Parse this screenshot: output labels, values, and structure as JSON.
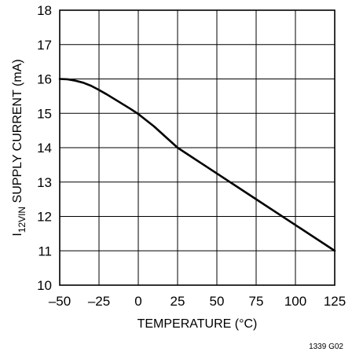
{
  "chart_data": {
    "type": "line",
    "xlabel": "TEMPERATURE (°C)",
    "ylabel_main": "I",
    "ylabel_sub": "12VIN",
    "ylabel_rest": " SUPPLY CURRENT (mA)",
    "x_ticks": [
      "–50",
      "–25",
      "0",
      "25",
      "50",
      "75",
      "100",
      "125"
    ],
    "y_ticks": [
      "10",
      "11",
      "12",
      "13",
      "14",
      "15",
      "16",
      "17",
      "18"
    ],
    "xlim": [
      -50,
      125
    ],
    "ylim": [
      10,
      18
    ],
    "grid": true,
    "series": [
      {
        "x": [
          -50,
          -45,
          -40,
          -35,
          -30,
          -25,
          -20,
          -15,
          -10,
          -5,
          0,
          10,
          25,
          50,
          75,
          100,
          125
        ],
        "y": [
          16.0,
          15.99,
          15.95,
          15.89,
          15.8,
          15.68,
          15.55,
          15.41,
          15.27,
          15.13,
          14.98,
          14.62,
          14.0,
          13.25,
          12.5,
          11.75,
          11.0
        ]
      }
    ],
    "line_color": "#000000",
    "grid_color": "#000000"
  },
  "figure_id": "1339 G02"
}
